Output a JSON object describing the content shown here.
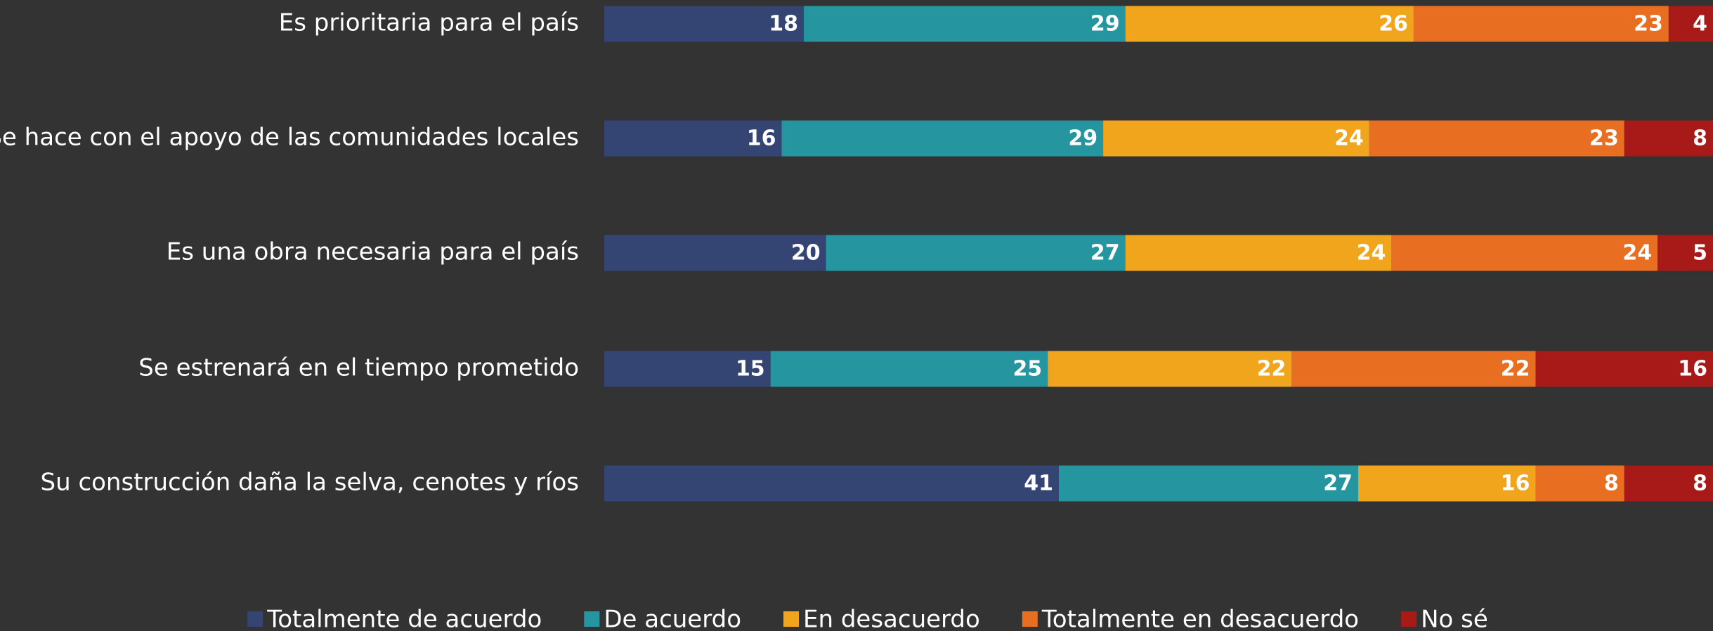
{
  "chart_data": {
    "type": "stacked-barh",
    "categories": [
      "Es prioritaria para el país",
      "Se hace con el apoyo de las comunidades locales",
      "Es una obra necesaria para el país",
      "Se estrenará en el tiempo prometido",
      "Su construcción daña la selva, cenotes y ríos"
    ],
    "series": [
      {
        "name": "Totalmente de acuerdo",
        "color": "#344573",
        "values": [
          18,
          16,
          20,
          15,
          41
        ]
      },
      {
        "name": "De acuerdo",
        "color": "#2596a0",
        "values": [
          29,
          29,
          27,
          25,
          27
        ]
      },
      {
        "name": "En desacuerdo",
        "color": "#f0a51c",
        "values": [
          26,
          24,
          24,
          22,
          16
        ]
      },
      {
        "name": "Totalmente en desacuerdo",
        "color": "#e86e22",
        "values": [
          23,
          23,
          24,
          22,
          8
        ]
      },
      {
        "name": "No sé",
        "color": "#a81a17",
        "values": [
          4,
          8,
          5,
          16,
          8
        ]
      }
    ],
    "xlim": [
      0,
      100
    ],
    "legend": "bottom"
  }
}
